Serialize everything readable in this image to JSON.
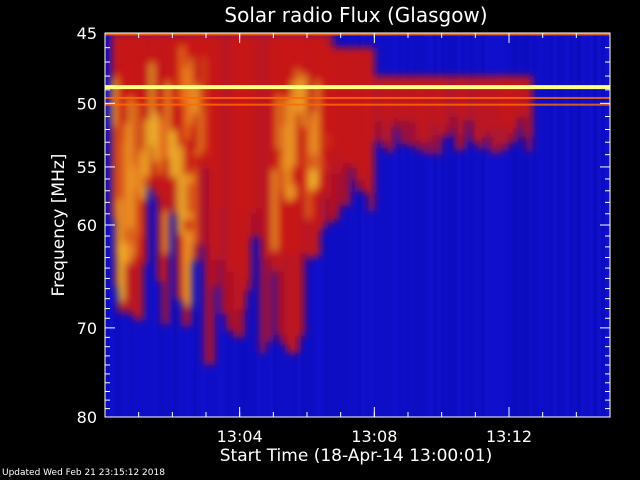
{
  "chart_data": {
    "type": "heatmap",
    "title": "Solar radio Flux (Glasgow)",
    "xlabel": "Start Time (18-Apr-14 13:00:01)",
    "ylabel": "Frequency [MHz]",
    "x_unit": "minutes after 13:00:01",
    "xlim": [
      0,
      15
    ],
    "ylim": [
      45,
      80
    ],
    "y_scale": "log",
    "y_inverted": true,
    "x_ticks": [
      "13:04",
      "13:08",
      "13:12"
    ],
    "x_tick_values": [
      4,
      8,
      12
    ],
    "y_ticks": [
      45,
      50,
      55,
      60,
      70,
      80
    ],
    "colors": {
      "background": "#000000",
      "axis": "#ffffff",
      "low": "#0b0bb8",
      "mid": "#c81414",
      "high": "#ffff3c"
    },
    "interference_lines_mhz": [
      45.1,
      48.8,
      49.6,
      50.1
    ],
    "bursts": [
      {
        "t_start": 0.2,
        "t_end": 2.8,
        "f_low_mhz": 45,
        "f_high_mhz": 70,
        "peak": "high"
      },
      {
        "t_start": 2.2,
        "t_end": 3.2,
        "f_low_mhz": 45,
        "f_high_mhz": 56,
        "peak": "high"
      },
      {
        "t_start": 3.0,
        "t_end": 5.8,
        "f_low_mhz": 45,
        "f_high_mhz": 75,
        "peak": "mid"
      },
      {
        "t_start": 5.0,
        "t_end": 6.6,
        "f_low_mhz": 45,
        "f_high_mhz": 66,
        "peak": "mid-high"
      },
      {
        "t_start": 6.4,
        "t_end": 8.0,
        "f_low_mhz": 46,
        "f_high_mhz": 60,
        "peak": "mid"
      },
      {
        "t_start": 8.0,
        "t_end": 12.6,
        "f_low_mhz": 48,
        "f_high_mhz": 54,
        "peak": "low-mid"
      }
    ]
  },
  "footer": {
    "updated": "Updated Wed Feb 21 23:15:12 2018"
  }
}
